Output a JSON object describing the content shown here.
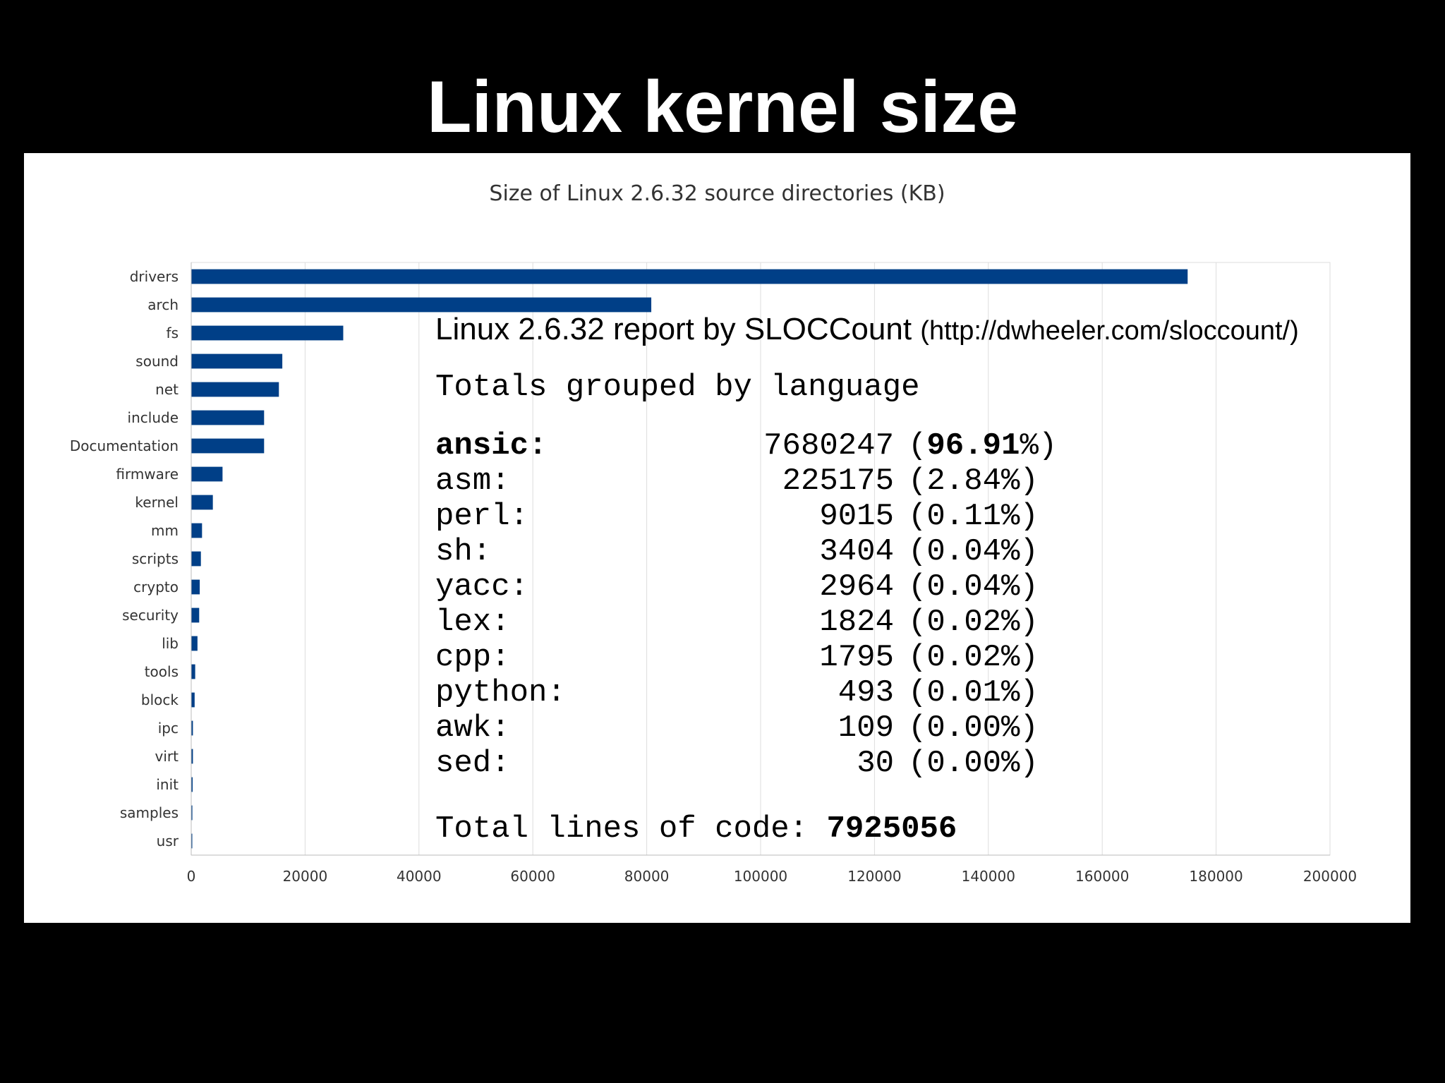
{
  "slide": {
    "title": "Linux kernel size"
  },
  "chart_data": {
    "type": "bar",
    "orientation": "horizontal",
    "title": "Size of Linux 2.6.32 source directories (KB)",
    "categories": [
      "drivers",
      "arch",
      "fs",
      "sound",
      "net",
      "include",
      "Documentation",
      "firmware",
      "kernel",
      "mm",
      "scripts",
      "crypto",
      "security",
      "lib",
      "tools",
      "block",
      "ipc",
      "virt",
      "init",
      "samples",
      "usr"
    ],
    "values": [
      175000,
      80800,
      26700,
      16000,
      15400,
      12800,
      12800,
      5500,
      3800,
      1900,
      1700,
      1500,
      1400,
      1100,
      700,
      600,
      300,
      300,
      250,
      200,
      150
    ],
    "xlim": [
      0,
      200000
    ],
    "xticks": [
      0,
      20000,
      40000,
      60000,
      80000,
      100000,
      120000,
      140000,
      160000,
      180000,
      200000
    ],
    "grid": true,
    "bar_color": "#003f87"
  },
  "report": {
    "header_text": "Linux 2.6.32 report by SLOCCount",
    "header_url": "(http://dwheeler.com/sloccount/)",
    "subtitle": "Totals grouped by language",
    "rows": [
      {
        "lang": "ansic:",
        "lines": "7680247",
        "pct": "96.91"
      },
      {
        "lang": "asm:",
        "lines": "225175",
        "pct": "2.84"
      },
      {
        "lang": "perl:",
        "lines": "9015",
        "pct": "0.11"
      },
      {
        "lang": "sh:",
        "lines": "3404",
        "pct": "0.04"
      },
      {
        "lang": "yacc:",
        "lines": "2964",
        "pct": "0.04"
      },
      {
        "lang": "lex:",
        "lines": "1824",
        "pct": "0.02"
      },
      {
        "lang": "cpp:",
        "lines": "1795",
        "pct": "0.02"
      },
      {
        "lang": "python:",
        "lines": "493",
        "pct": "0.01"
      },
      {
        "lang": "awk:",
        "lines": "109",
        "pct": "0.00"
      },
      {
        "lang": "sed:",
        "lines": "30",
        "pct": "0.00"
      }
    ],
    "total_label": "Total lines of code:",
    "total_value": "7925056"
  }
}
